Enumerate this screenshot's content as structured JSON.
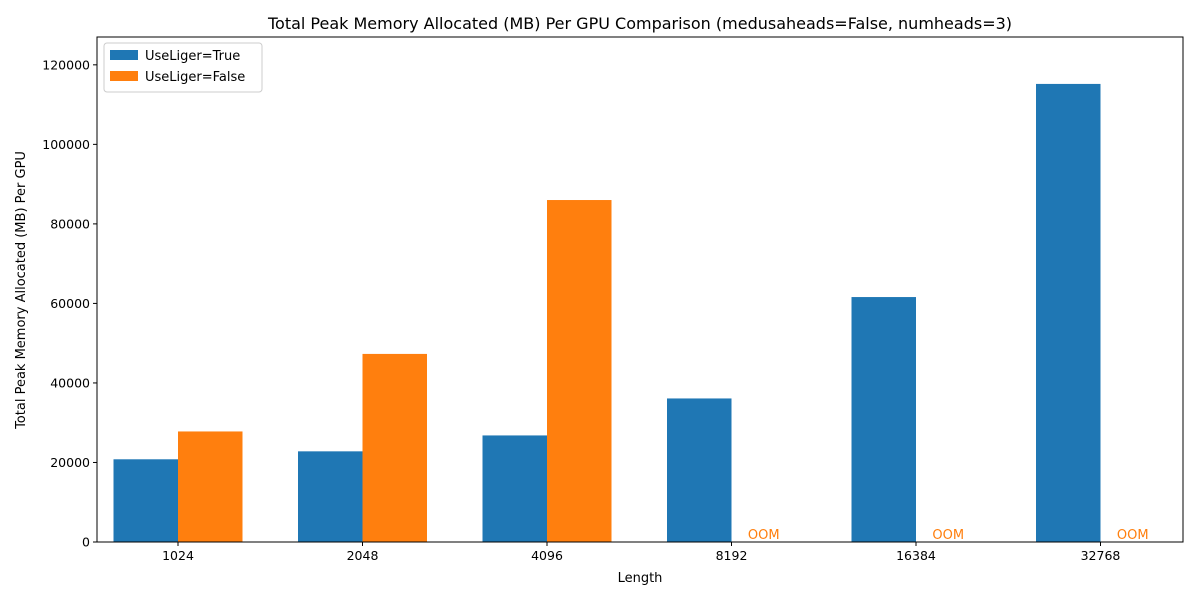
{
  "chart_data": {
    "type": "bar",
    "title": "Total Peak Memory Allocated (MB) Per GPU Comparison (medusaheads=False, numheads=3)",
    "xlabel": "Length",
    "ylabel": "Total Peak Memory Allocated (MB) Per GPU",
    "categories": [
      "1024",
      "2048",
      "4096",
      "8192",
      "16384",
      "32768"
    ],
    "ylim": [
      0,
      127000
    ],
    "yticks": [
      0,
      20000,
      40000,
      60000,
      80000,
      100000,
      120000
    ],
    "ytick_labels": [
      "0",
      "20000",
      "40000",
      "60000",
      "80000",
      "100000",
      "120000"
    ],
    "legend_position": "top-left",
    "grid": false,
    "series": [
      {
        "name": "UseLiger=True",
        "color": "#1f77b4",
        "values": [
          20800,
          22800,
          26800,
          36100,
          61600,
          115200
        ]
      },
      {
        "name": "UseLiger=False",
        "color": "#ff7f0e",
        "values": [
          27800,
          47300,
          86000,
          null,
          null,
          null
        ]
      }
    ],
    "oom_label": "OOM"
  }
}
